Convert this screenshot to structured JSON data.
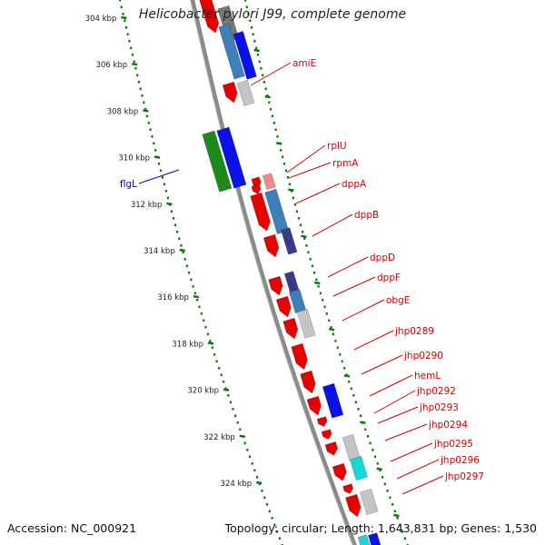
{
  "title": "Helicobacter pylori J99, complete genome",
  "footer": {
    "accession": "Accession: NC_000921",
    "summary": "Topology: circular; Length: 1,643,831 bp; Genes: 1,530"
  },
  "colors": {
    "axis": "#8a8a8a",
    "tick": "#0a7a0a",
    "red": "#e80000",
    "blue": "#0a12e6",
    "green": "#1e8a1e",
    "steelblue": "#3d7fb6",
    "gray": "#c4c4c4",
    "cyan": "#1ad6d6",
    "darkblue": "#3a3a8a",
    "pink": "#f08a8a",
    "label_red": "#d40000",
    "label_blue": "#0000cc"
  },
  "ruler": {
    "labels": [
      "304 kbp",
      "306 kbp",
      "308 kbp",
      "310 kbp",
      "312 kbp",
      "314 kbp",
      "316 kbp",
      "318 kbp",
      "320 kbp",
      "322 kbp",
      "324 kbp"
    ]
  },
  "genes": [
    {
      "name": "flgL",
      "color": "label_blue"
    },
    {
      "name": "amiE",
      "color": "label_red"
    },
    {
      "name": "rplU",
      "color": "label_red"
    },
    {
      "name": "rpmA",
      "color": "label_red"
    },
    {
      "name": "dppA",
      "color": "label_red"
    },
    {
      "name": "dppB",
      "color": "label_red"
    },
    {
      "name": "dppD",
      "color": "label_red"
    },
    {
      "name": "dppF",
      "color": "label_red"
    },
    {
      "name": "obgE",
      "color": "label_red"
    },
    {
      "name": "jhp0289",
      "color": "label_red"
    },
    {
      "name": "jhp0290",
      "color": "label_red"
    },
    {
      "name": "hemL",
      "color": "label_red"
    },
    {
      "name": "jhp0292",
      "color": "label_red"
    },
    {
      "name": "jhp0293",
      "color": "label_red"
    },
    {
      "name": "jhp0294",
      "color": "label_red"
    },
    {
      "name": "jhp0295",
      "color": "label_red"
    },
    {
      "name": "jhp0296",
      "color": "label_red"
    },
    {
      "name": "jhp0297",
      "color": "label_red"
    }
  ]
}
